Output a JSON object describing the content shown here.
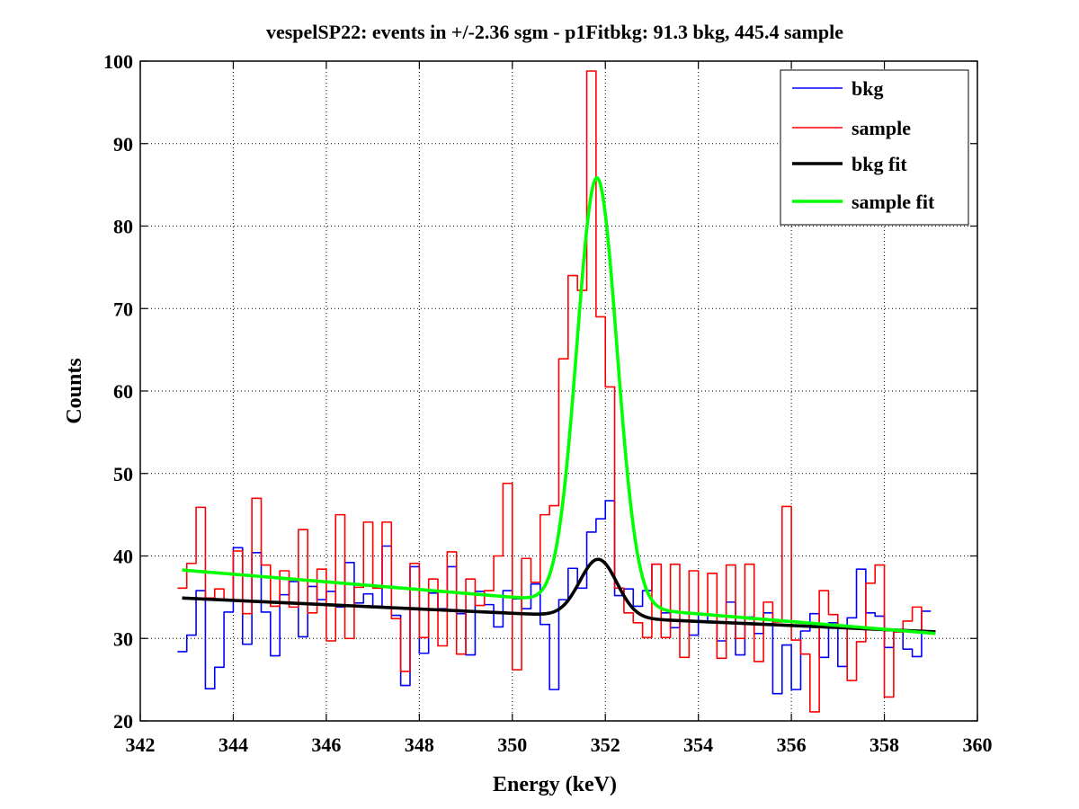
{
  "chart_data": {
    "type": "line",
    "title": "vespelSP22: events in +/-2.36 sgm - p1Fitbkg: 91.3 bkg, 445.4 sample",
    "xlabel": "Energy (keV)",
    "ylabel": "Counts",
    "xlim": [
      342,
      360
    ],
    "ylim": [
      20,
      100
    ],
    "xticks": [
      "342",
      "344",
      "346",
      "348",
      "350",
      "352",
      "354",
      "356",
      "358",
      "360"
    ],
    "yticks": [
      "20",
      "30",
      "40",
      "50",
      "60",
      "70",
      "80",
      "90",
      "100"
    ],
    "grid": true,
    "legend_position": "top-right",
    "histogram_bin_width": 0.2,
    "series": [
      {
        "name": "bkg",
        "style": "stairs",
        "color": "#0000ff",
        "x": [
          342.9,
          343.1,
          343.3,
          343.5,
          343.7,
          343.9,
          344.1,
          344.3,
          344.5,
          344.7,
          344.9,
          345.1,
          345.3,
          345.5,
          345.7,
          345.9,
          346.1,
          346.3,
          346.5,
          346.7,
          346.9,
          347.1,
          347.3,
          347.5,
          347.7,
          347.9,
          348.1,
          348.3,
          348.5,
          348.7,
          348.9,
          349.1,
          349.3,
          349.5,
          349.7,
          349.9,
          350.1,
          350.3,
          350.5,
          350.7,
          350.9,
          351.1,
          351.3,
          351.5,
          351.7,
          351.9,
          352.1,
          352.3,
          352.5,
          352.7,
          352.9,
          353.1,
          353.3,
          353.5,
          353.7,
          353.9,
          354.1,
          354.3,
          354.5,
          354.7,
          354.9,
          355.1,
          355.3,
          355.5,
          355.7,
          355.9,
          356.1,
          356.3,
          356.5,
          356.7,
          356.9,
          357.1,
          357.3,
          357.5,
          357.7,
          357.9,
          358.1,
          358.3,
          358.5,
          358.7,
          358.9
        ],
        "values": [
          28.4,
          30.4,
          35.8,
          23.9,
          26.5,
          33.2,
          41.0,
          29.3,
          40.4,
          33.2,
          27.9,
          35.3,
          36.9,
          30.2,
          36.3,
          34.7,
          35.7,
          33.8,
          39.2,
          34.3,
          35.4,
          33.9,
          41.2,
          32.8,
          24.3,
          38.7,
          28.2,
          35.5,
          33.6,
          38.7,
          33.0,
          28.0,
          35.7,
          34.1,
          31.4,
          35.8,
          34.8,
          33.6,
          36.6,
          31.7,
          23.8,
          34.7,
          38.5,
          36.1,
          42.9,
          44.5,
          46.7,
          35.2,
          36.0,
          33.9,
          35.8,
          39.0,
          33.1,
          31.3,
          32.2,
          30.4,
          32.9,
          31.9,
          29.7,
          34.4,
          28.0,
          32.6,
          30.6,
          33.1,
          23.3,
          29.2,
          23.8,
          30.9,
          33.0,
          27.7,
          31.9,
          26.6,
          32.5,
          38.4,
          33.1,
          32.7,
          28.9,
          30.8,
          28.7,
          27.8,
          33.3
        ]
      },
      {
        "name": "sample",
        "style": "stairs",
        "color": "#ff0000",
        "x": [
          342.9,
          343.1,
          343.3,
          343.5,
          343.7,
          343.9,
          344.1,
          344.3,
          344.5,
          344.7,
          344.9,
          345.1,
          345.3,
          345.5,
          345.7,
          345.9,
          346.1,
          346.3,
          346.5,
          346.7,
          346.9,
          347.1,
          347.3,
          347.5,
          347.7,
          347.9,
          348.1,
          348.3,
          348.5,
          348.7,
          348.9,
          349.1,
          349.3,
          349.5,
          349.7,
          349.9,
          350.1,
          350.3,
          350.5,
          350.7,
          350.9,
          351.1,
          351.3,
          351.5,
          351.7,
          351.9,
          352.1,
          352.3,
          352.5,
          352.7,
          352.9,
          353.1,
          353.3,
          353.5,
          353.7,
          353.9,
          354.1,
          354.3,
          354.5,
          354.7,
          354.9,
          355.1,
          355.3,
          355.5,
          355.7,
          355.9,
          356.1,
          356.3,
          356.5,
          356.7,
          356.9,
          357.1,
          357.3,
          357.5,
          357.7,
          357.9,
          358.1,
          358.3,
          358.5,
          358.7,
          358.9
        ],
        "values": [
          36.1,
          39.1,
          45.9,
          34.9,
          36.0,
          34.6,
          40.6,
          33.0,
          47.0,
          38.9,
          33.9,
          38.2,
          33.8,
          43.2,
          33.1,
          38.4,
          29.7,
          45.0,
          30.0,
          36.2,
          44.1,
          36.1,
          44.1,
          32.4,
          26.0,
          39.1,
          30.1,
          37.2,
          29.1,
          40.5,
          28.1,
          37.2,
          34.0,
          35.8,
          40.0,
          48.8,
          26.2,
          39.7,
          36.8,
          45.0,
          46.1,
          63.9,
          74.0,
          72.2,
          98.8,
          69.0,
          60.5,
          36.1,
          33.1,
          31.9,
          30.1,
          39.0,
          30.1,
          39.0,
          27.7,
          38.2,
          32.9,
          37.9,
          27.6,
          38.9,
          30.0,
          39.0,
          27.2,
          34.4,
          32.0,
          46.0,
          29.8,
          28.1,
          21.1,
          35.8,
          32.9,
          31.2,
          24.9,
          29.6,
          36.7,
          38.9,
          22.9,
          30.8,
          32.1,
          33.8,
          30.9
        ]
      },
      {
        "name": "bkg fit",
        "style": "line",
        "color": "#000000",
        "baseline": [
          [
            342.9,
            34.9
          ],
          [
            350.2,
            33.0
          ],
          [
            359.1,
            30.8
          ]
        ],
        "peak": {
          "center": 351.85,
          "height": 7.0,
          "sigma": 0.4
        }
      },
      {
        "name": "sample fit",
        "style": "line",
        "color": "#00ff00",
        "baseline": [
          [
            342.9,
            38.3
          ],
          [
            350.0,
            35.0
          ],
          [
            353.3,
            33.3
          ],
          [
            359.1,
            30.6
          ]
        ],
        "peak": {
          "center": 351.82,
          "height": 51.8,
          "sigma": 0.43
        }
      }
    ]
  }
}
